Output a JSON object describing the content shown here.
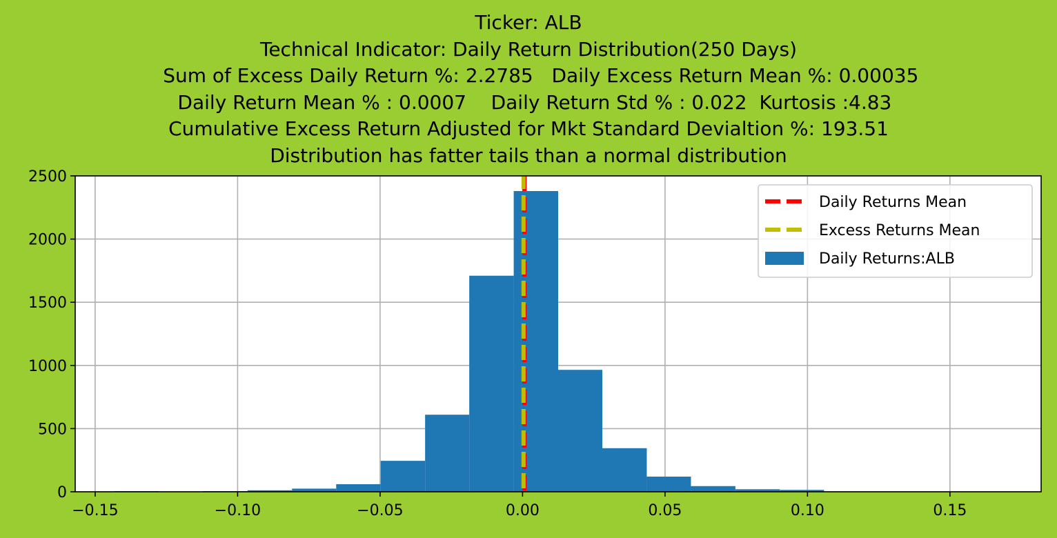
{
  "title_lines": [
    "Ticker: ALB",
    "Technical Indicator: Daily Return Distribution(250 Days)",
    "    Sum of Excess Daily Return %: 2.2785   Daily Excess Return Mean %: 0.00035",
    "  Daily Return Mean % : 0.0007    Daily Return Std % : 0.022  Kurtosis :4.83",
    "Cumulative Excess Return Adjusted for Mkt Standard Devialtion %: 193.51",
    "Distribution has fatter tails than a normal distribution"
  ],
  "colors": {
    "background": "#9acd32",
    "bars": "#1f77b4",
    "daily_mean_line": "#ff0000",
    "excess_mean_line": "#bfbf00",
    "grid": "#b0b0b0"
  },
  "chart_data": {
    "type": "bar",
    "subtype": "histogram",
    "xlim": [
      -0.157,
      0.182
    ],
    "ylim": [
      0,
      2500
    ],
    "grid": true,
    "legend_position": "top-right",
    "xticks": [
      {
        "value": -0.15,
        "label": "−0.15"
      },
      {
        "value": -0.1,
        "label": "−0.10"
      },
      {
        "value": -0.05,
        "label": "−0.05"
      },
      {
        "value": 0.0,
        "label": "0.00"
      },
      {
        "value": 0.05,
        "label": "0.05"
      },
      {
        "value": 0.1,
        "label": "0.10"
      },
      {
        "value": 0.15,
        "label": "0.15"
      }
    ],
    "yticks": [
      {
        "value": 0,
        "label": "0"
      },
      {
        "value": 500,
        "label": "500"
      },
      {
        "value": 1000,
        "label": "1000"
      },
      {
        "value": 1500,
        "label": "1500"
      },
      {
        "value": 2000,
        "label": "2000"
      },
      {
        "value": 2500,
        "label": "2500"
      }
    ],
    "series": [
      {
        "name": "Daily Returns:ALB",
        "bins": [
          {
            "x0": -0.1432,
            "x1": -0.1276,
            "count": 5
          },
          {
            "x0": -0.1276,
            "x1": -0.112,
            "count": 2
          },
          {
            "x0": -0.112,
            "x1": -0.0965,
            "count": 5
          },
          {
            "x0": -0.0965,
            "x1": -0.0809,
            "count": 12
          },
          {
            "x0": -0.0809,
            "x1": -0.0654,
            "count": 25
          },
          {
            "x0": -0.0654,
            "x1": -0.0498,
            "count": 60
          },
          {
            "x0": -0.0498,
            "x1": -0.0342,
            "count": 245
          },
          {
            "x0": -0.0342,
            "x1": -0.0187,
            "count": 610
          },
          {
            "x0": -0.0187,
            "x1": -0.0031,
            "count": 1710
          },
          {
            "x0": -0.0031,
            "x1": 0.0125,
            "count": 2380
          },
          {
            "x0": 0.0125,
            "x1": 0.028,
            "count": 965
          },
          {
            "x0": 0.028,
            "x1": 0.0436,
            "count": 345
          },
          {
            "x0": 0.0436,
            "x1": 0.0591,
            "count": 120
          },
          {
            "x0": 0.0591,
            "x1": 0.0747,
            "count": 45
          },
          {
            "x0": 0.0747,
            "x1": 0.0903,
            "count": 20
          },
          {
            "x0": 0.0903,
            "x1": 0.1058,
            "count": 15
          },
          {
            "x0": 0.1058,
            "x1": 0.1214,
            "count": 2
          }
        ]
      }
    ],
    "vlines": [
      {
        "name": "Daily Returns Mean",
        "x": 0.0007,
        "color": "#ff0000"
      },
      {
        "name": "Excess Returns Mean",
        "x": 0.00035,
        "color": "#bfbf00"
      }
    ]
  }
}
